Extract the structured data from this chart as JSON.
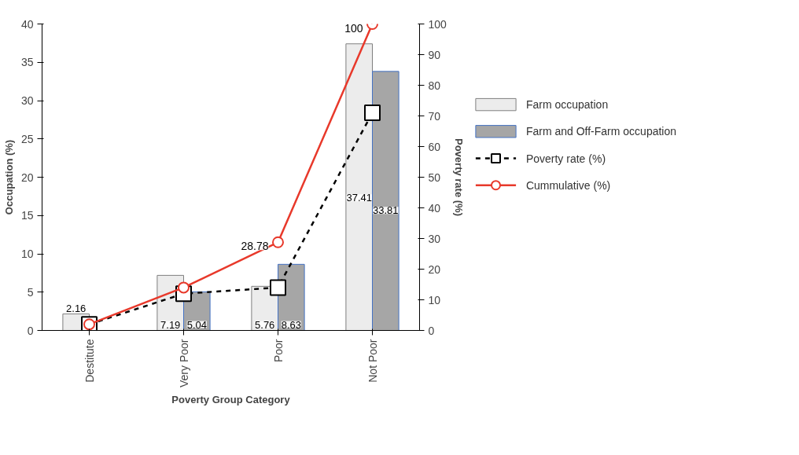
{
  "chart_data": {
    "type": "bar",
    "xlabel": "Poverty Group Category",
    "ylabel": "Occupation (%)",
    "y2label": "Poverty rate (%)",
    "categories": [
      "Destitute",
      "Very Poor",
      "Poor",
      "Not Poor"
    ],
    "series": [
      {
        "name": "Farm occupation",
        "color": "#ececec",
        "values": [
          2.16,
          7.19,
          5.76,
          37.41
        ],
        "data_labels": true
      },
      {
        "name": "Farm and Off-Farm occupation",
        "color": "#a6a6a6",
        "values": [
          null,
          5.04,
          8.63,
          33.81
        ],
        "data_labels": true
      },
      {
        "name": "Poverty rate (%)",
        "type": "line",
        "axis": "y2",
        "color": "#000000",
        "line_style": "dashed",
        "marker": "square",
        "values": [
          2,
          12,
          14,
          71
        ]
      },
      {
        "name": "Cummulative (%)",
        "type": "line",
        "axis": "y2",
        "color": "#e8392b",
        "line_style": "solid",
        "marker": "circle",
        "values": [
          2,
          14,
          28.78,
          100
        ],
        "value_labels": [
          null,
          null,
          "28.78",
          "100"
        ]
      }
    ],
    "ylim": [
      0,
      40
    ],
    "yticks": [
      0,
      5,
      10,
      15,
      20,
      25,
      30,
      35,
      40
    ],
    "y2lim": [
      0,
      100
    ],
    "y2ticks": [
      0,
      10,
      20,
      30,
      40,
      50,
      60,
      70,
      80,
      90,
      100
    ],
    "grid": false,
    "legend": "right"
  }
}
